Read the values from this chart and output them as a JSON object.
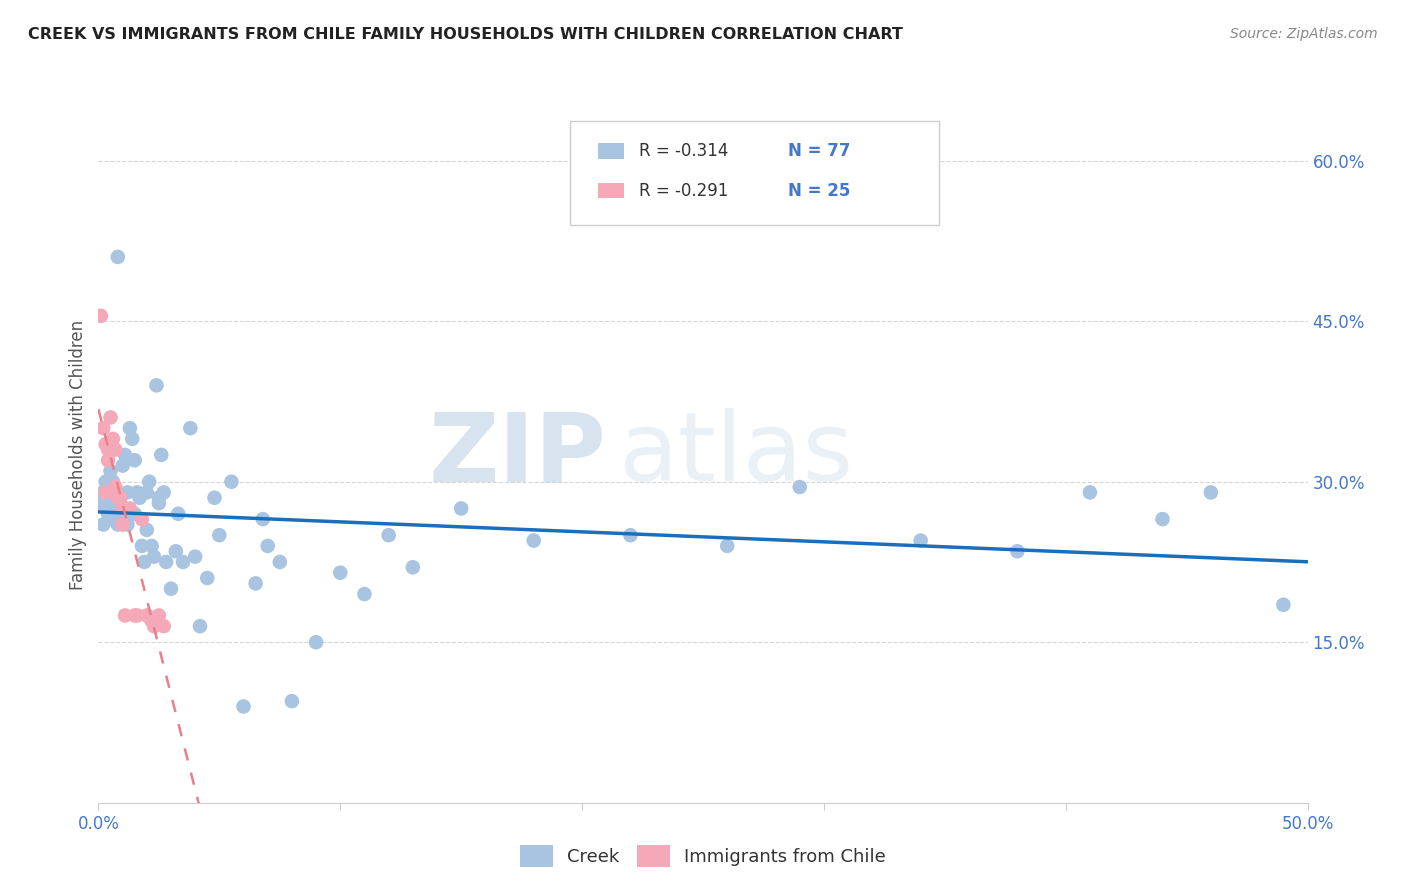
{
  "title": "CREEK VS IMMIGRANTS FROM CHILE FAMILY HOUSEHOLDS WITH CHILDREN CORRELATION CHART",
  "source": "Source: ZipAtlas.com",
  "ylabel": "Family Households with Children",
  "xlim": [
    0.0,
    0.5
  ],
  "ylim": [
    0.0,
    0.65
  ],
  "xticks": [
    0.0,
    0.1,
    0.2,
    0.3,
    0.4,
    0.5
  ],
  "xticklabels": [
    "0.0%",
    "",
    "",
    "",
    "",
    "50.0%"
  ],
  "yticks_right": [
    0.15,
    0.3,
    0.45,
    0.6
  ],
  "yticklabels_right": [
    "15.0%",
    "30.0%",
    "45.0%",
    "60.0%"
  ],
  "creek_color": "#a8c4e0",
  "chile_color": "#f4a8b8",
  "trendline_creek_color": "#1a6fbc",
  "trendline_chile_color": "#e8808a",
  "legend_creek_label": "Creek",
  "legend_chile_label": "Immigrants from Chile",
  "creek_R": "-0.314",
  "creek_N": "77",
  "chile_R": "-0.291",
  "chile_N": "25",
  "creek_scatter_x": [
    0.001,
    0.002,
    0.002,
    0.003,
    0.003,
    0.004,
    0.004,
    0.005,
    0.005,
    0.005,
    0.006,
    0.006,
    0.007,
    0.007,
    0.008,
    0.008,
    0.009,
    0.009,
    0.01,
    0.01,
    0.01,
    0.011,
    0.011,
    0.012,
    0.012,
    0.013,
    0.014,
    0.015,
    0.015,
    0.016,
    0.017,
    0.018,
    0.019,
    0.02,
    0.02,
    0.021,
    0.022,
    0.023,
    0.024,
    0.025,
    0.025,
    0.026,
    0.027,
    0.028,
    0.03,
    0.032,
    0.033,
    0.035,
    0.038,
    0.04,
    0.042,
    0.045,
    0.048,
    0.05,
    0.055,
    0.06,
    0.065,
    0.068,
    0.07,
    0.075,
    0.08,
    0.09,
    0.1,
    0.11,
    0.12,
    0.13,
    0.15,
    0.18,
    0.22,
    0.26,
    0.29,
    0.34,
    0.38,
    0.41,
    0.44,
    0.46,
    0.49
  ],
  "creek_scatter_y": [
    0.28,
    0.29,
    0.26,
    0.3,
    0.285,
    0.27,
    0.28,
    0.295,
    0.31,
    0.265,
    0.275,
    0.3,
    0.285,
    0.28,
    0.51,
    0.26,
    0.265,
    0.28,
    0.275,
    0.265,
    0.315,
    0.325,
    0.27,
    0.29,
    0.26,
    0.35,
    0.34,
    0.27,
    0.32,
    0.29,
    0.285,
    0.24,
    0.225,
    0.29,
    0.255,
    0.3,
    0.24,
    0.23,
    0.39,
    0.28,
    0.285,
    0.325,
    0.29,
    0.225,
    0.2,
    0.235,
    0.27,
    0.225,
    0.35,
    0.23,
    0.165,
    0.21,
    0.285,
    0.25,
    0.3,
    0.09,
    0.205,
    0.265,
    0.24,
    0.225,
    0.095,
    0.15,
    0.215,
    0.195,
    0.25,
    0.22,
    0.275,
    0.245,
    0.25,
    0.24,
    0.295,
    0.245,
    0.235,
    0.29,
    0.265,
    0.29,
    0.185
  ],
  "chile_scatter_x": [
    0.001,
    0.002,
    0.003,
    0.003,
    0.004,
    0.004,
    0.005,
    0.005,
    0.006,
    0.007,
    0.007,
    0.008,
    0.009,
    0.01,
    0.01,
    0.011,
    0.013,
    0.015,
    0.016,
    0.018,
    0.02,
    0.022,
    0.023,
    0.025,
    0.027
  ],
  "chile_scatter_y": [
    0.455,
    0.35,
    0.335,
    0.29,
    0.33,
    0.32,
    0.36,
    0.335,
    0.34,
    0.33,
    0.295,
    0.285,
    0.285,
    0.275,
    0.26,
    0.175,
    0.275,
    0.175,
    0.175,
    0.265,
    0.175,
    0.17,
    0.165,
    0.175,
    0.165
  ],
  "watermark_zip": "ZIP",
  "watermark_atlas": "atlas",
  "background_color": "#ffffff",
  "grid_color": "#cccccc"
}
